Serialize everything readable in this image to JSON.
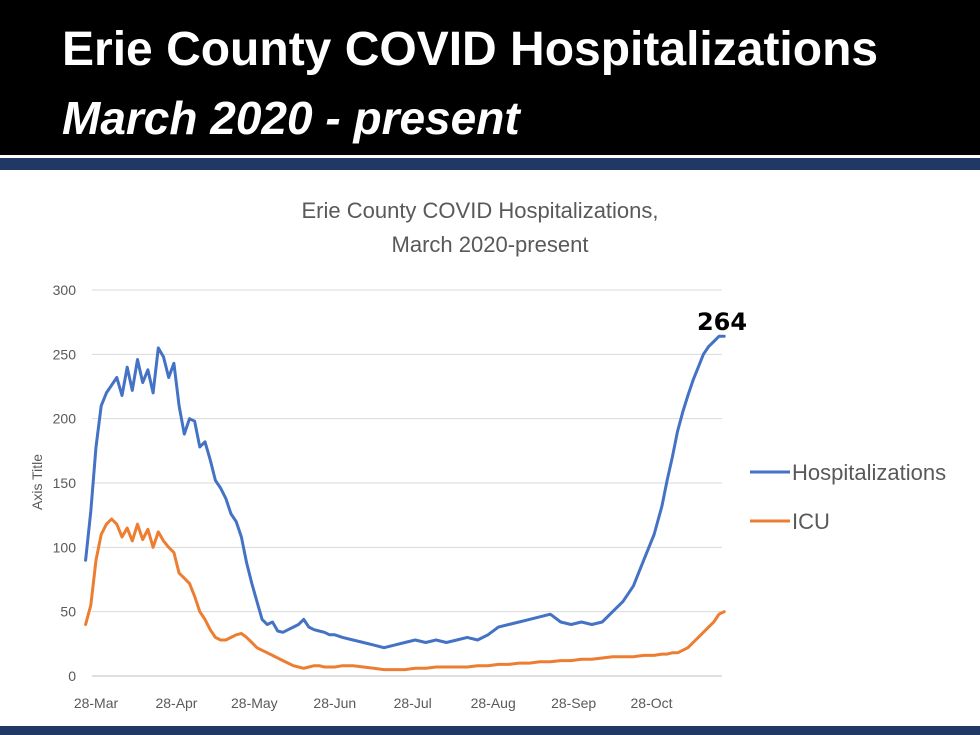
{
  "header": {
    "title": "Erie County COVID Hospitalizations",
    "subtitle": "March 2020 - present"
  },
  "colors": {
    "header_bg": "#000000",
    "accent_bar": "#1f3864",
    "hospitalizations": "#4472c4",
    "icu": "#ed7d31"
  },
  "chart_data": {
    "type": "line",
    "title_line1": "Erie County COVID Hospitalizations,",
    "title_line2": "March 2020-present",
    "xlabel": "",
    "ylabel": "Axis Title",
    "ylim": [
      0,
      300
    ],
    "yticks": [
      "0",
      "50",
      "100",
      "150",
      "200",
      "250",
      "300"
    ],
    "xticks": [
      "28-Mar",
      "28-Apr",
      "28-May",
      "28-Jun",
      "28-Jul",
      "28-Aug",
      "28-Sep",
      "28-Oct"
    ],
    "legend_position": "right",
    "grid": true,
    "annotation": "264",
    "x_dates": [
      "2020-03-24",
      "2020-03-26",
      "2020-03-28",
      "2020-03-30",
      "2020-04-01",
      "2020-04-03",
      "2020-04-05",
      "2020-04-07",
      "2020-04-09",
      "2020-04-11",
      "2020-04-13",
      "2020-04-15",
      "2020-04-17",
      "2020-04-19",
      "2020-04-21",
      "2020-04-23",
      "2020-04-25",
      "2020-04-27",
      "2020-04-29",
      "2020-05-01",
      "2020-05-03",
      "2020-05-05",
      "2020-05-07",
      "2020-05-09",
      "2020-05-11",
      "2020-05-13",
      "2020-05-15",
      "2020-05-17",
      "2020-05-19",
      "2020-05-21",
      "2020-05-23",
      "2020-05-25",
      "2020-05-27",
      "2020-05-29",
      "2020-05-31",
      "2020-06-02",
      "2020-06-04",
      "2020-06-06",
      "2020-06-08",
      "2020-06-10",
      "2020-06-12",
      "2020-06-14",
      "2020-06-16",
      "2020-06-18",
      "2020-06-20",
      "2020-06-22",
      "2020-06-24",
      "2020-06-26",
      "2020-06-28",
      "2020-07-01",
      "2020-07-05",
      "2020-07-09",
      "2020-07-13",
      "2020-07-17",
      "2020-07-21",
      "2020-07-25",
      "2020-07-29",
      "2020-08-02",
      "2020-08-06",
      "2020-08-10",
      "2020-08-14",
      "2020-08-18",
      "2020-08-22",
      "2020-08-26",
      "2020-08-30",
      "2020-09-03",
      "2020-09-07",
      "2020-09-11",
      "2020-09-15",
      "2020-09-19",
      "2020-09-23",
      "2020-09-27",
      "2020-10-01",
      "2020-10-05",
      "2020-10-09",
      "2020-10-13",
      "2020-10-17",
      "2020-10-21",
      "2020-10-25",
      "2020-10-29",
      "2020-11-01",
      "2020-11-03",
      "2020-11-05",
      "2020-11-07",
      "2020-11-09",
      "2020-11-11",
      "2020-11-13",
      "2020-11-15",
      "2020-11-17",
      "2020-11-19",
      "2020-11-21",
      "2020-11-23",
      "2020-11-25"
    ],
    "series": [
      {
        "name": "Hospitalizations",
        "values": [
          90,
          128,
          178,
          210,
          220,
          226,
          232,
          218,
          240,
          222,
          246,
          228,
          238,
          220,
          255,
          248,
          232,
          243,
          210,
          188,
          200,
          198,
          178,
          182,
          168,
          152,
          146,
          138,
          126,
          120,
          108,
          88,
          72,
          58,
          44,
          40,
          42,
          35,
          34,
          36,
          38,
          40,
          44,
          38,
          36,
          35,
          34,
          32,
          32,
          30,
          28,
          26,
          24,
          22,
          24,
          26,
          28,
          26,
          28,
          26,
          28,
          30,
          28,
          32,
          38,
          40,
          42,
          44,
          46,
          48,
          42,
          40,
          42,
          40,
          42,
          50,
          58,
          70,
          90,
          110,
          132,
          152,
          170,
          190,
          205,
          218,
          230,
          240,
          250,
          256,
          260,
          264,
          264
        ]
      },
      {
        "name": "ICU",
        "values": [
          40,
          55,
          90,
          110,
          118,
          122,
          118,
          108,
          115,
          105,
          118,
          106,
          114,
          100,
          112,
          105,
          100,
          96,
          80,
          76,
          72,
          62,
          50,
          44,
          36,
          30,
          28,
          28,
          30,
          32,
          33,
          30,
          26,
          22,
          20,
          18,
          16,
          14,
          12,
          10,
          8,
          7,
          6,
          7,
          8,
          8,
          7,
          7,
          7,
          8,
          8,
          7,
          6,
          5,
          5,
          5,
          6,
          6,
          7,
          7,
          7,
          7,
          8,
          8,
          9,
          9,
          10,
          10,
          11,
          11,
          12,
          12,
          13,
          13,
          14,
          15,
          15,
          15,
          16,
          16,
          17,
          17,
          18,
          18,
          20,
          22,
          26,
          30,
          34,
          38,
          42,
          48,
          50
        ]
      }
    ]
  }
}
